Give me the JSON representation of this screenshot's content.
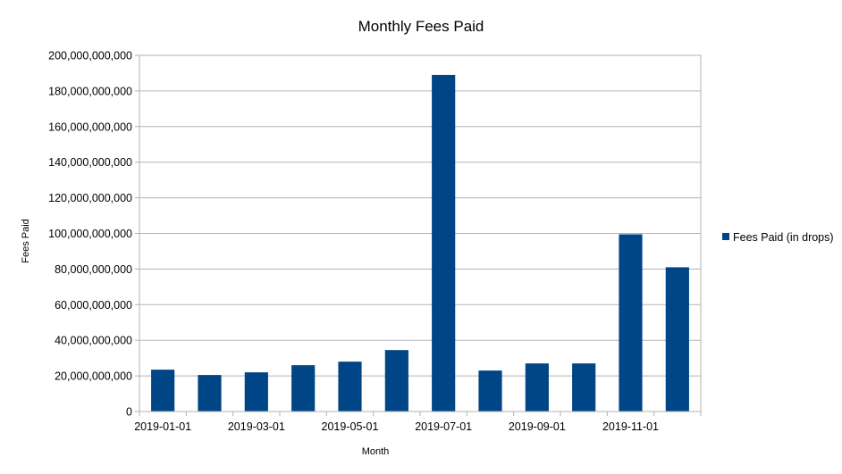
{
  "chart_data": {
    "type": "bar",
    "title": "Monthly Fees Paid",
    "xlabel": "Month",
    "ylabel": "Fees Paid",
    "ylim": [
      0,
      200000000000
    ],
    "yticks": [
      0,
      20000000000,
      40000000000,
      60000000000,
      80000000000,
      100000000000,
      120000000000,
      140000000000,
      160000000000,
      180000000000,
      200000000000
    ],
    "ytick_labels": [
      "0",
      "20,000,000,000",
      "40,000,000,000",
      "60,000,000,000",
      "80,000,000,000",
      "100,000,000,000",
      "120,000,000,000",
      "140,000,000,000",
      "160,000,000,000",
      "180,000,000,000",
      "200,000,000,000"
    ],
    "categories": [
      "2019-01-01",
      "2019-02-01",
      "2019-03-01",
      "2019-04-01",
      "2019-05-01",
      "2019-06-01",
      "2019-07-01",
      "2019-08-01",
      "2019-09-01",
      "2019-10-01",
      "2019-11-01",
      "2019-12-01"
    ],
    "xtick_labels": [
      "2019-01-01",
      "",
      "2019-03-01",
      "",
      "2019-05-01",
      "",
      "2019-07-01",
      "",
      "2019-09-01",
      "",
      "2019-11-01",
      ""
    ],
    "series": [
      {
        "name": "Fees Paid (in drops)",
        "color": "#004586",
        "values": [
          23500000000,
          20500000000,
          22000000000,
          26000000000,
          28000000000,
          34500000000,
          189000000000,
          23000000000,
          27000000000,
          27000000000,
          99500000000,
          81000000000
        ]
      }
    ],
    "grid": true,
    "legend": "right"
  }
}
